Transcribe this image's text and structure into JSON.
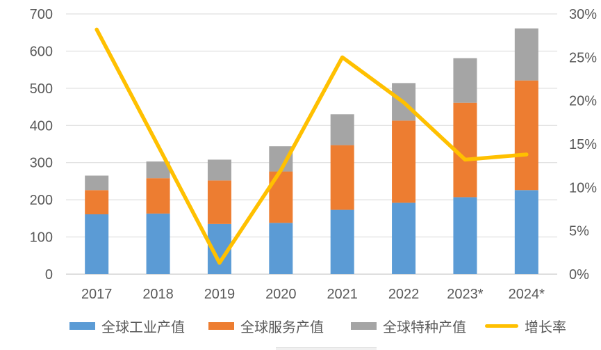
{
  "chart_data": {
    "type": "combo",
    "bar_mode": "stacked",
    "title": "",
    "categories": [
      "2017",
      "2018",
      "2019",
      "2020",
      "2021",
      "2022",
      "2023*",
      "2024*"
    ],
    "series": [
      {
        "name": "全球工业产值",
        "type": "bar",
        "color": "#5B9BD5",
        "axis": "left",
        "values": [
          161,
          163,
          135,
          138,
          173,
          192,
          207,
          226
        ]
      },
      {
        "name": "全球服务产值",
        "type": "bar",
        "color": "#ED7D31",
        "axis": "left",
        "values": [
          65,
          95,
          117,
          138,
          174,
          221,
          254,
          295
        ]
      },
      {
        "name": "全球特种产值",
        "type": "bar",
        "color": "#A5A5A5",
        "axis": "left",
        "values": [
          39,
          45,
          56,
          68,
          83,
          101,
          120,
          140
        ]
      },
      {
        "name": "增长率",
        "type": "line",
        "color": "#FFC000",
        "axis": "right",
        "values": [
          28.2,
          14.8,
          1.3,
          12.0,
          25.0,
          19.8,
          13.2,
          13.8
        ]
      }
    ],
    "stack_totals": [
      265,
      303,
      308,
      344,
      430,
      514,
      581,
      661
    ],
    "left_axis": {
      "min": 0,
      "max": 700,
      "step": 100,
      "ticks": [
        "0",
        "100",
        "200",
        "300",
        "400",
        "500",
        "600",
        "700"
      ]
    },
    "right_axis": {
      "min": 0,
      "max": 30,
      "step": 5,
      "ticks": [
        "0%",
        "5%",
        "10%",
        "15%",
        "20%",
        "25%",
        "30%"
      ]
    },
    "grid": true,
    "legend_position": "bottom"
  },
  "style": {
    "text_color": "#595959",
    "gridline_color": "#D9D9D9",
    "baseline_color": "#BFBFBF",
    "background": "#ffffff"
  }
}
